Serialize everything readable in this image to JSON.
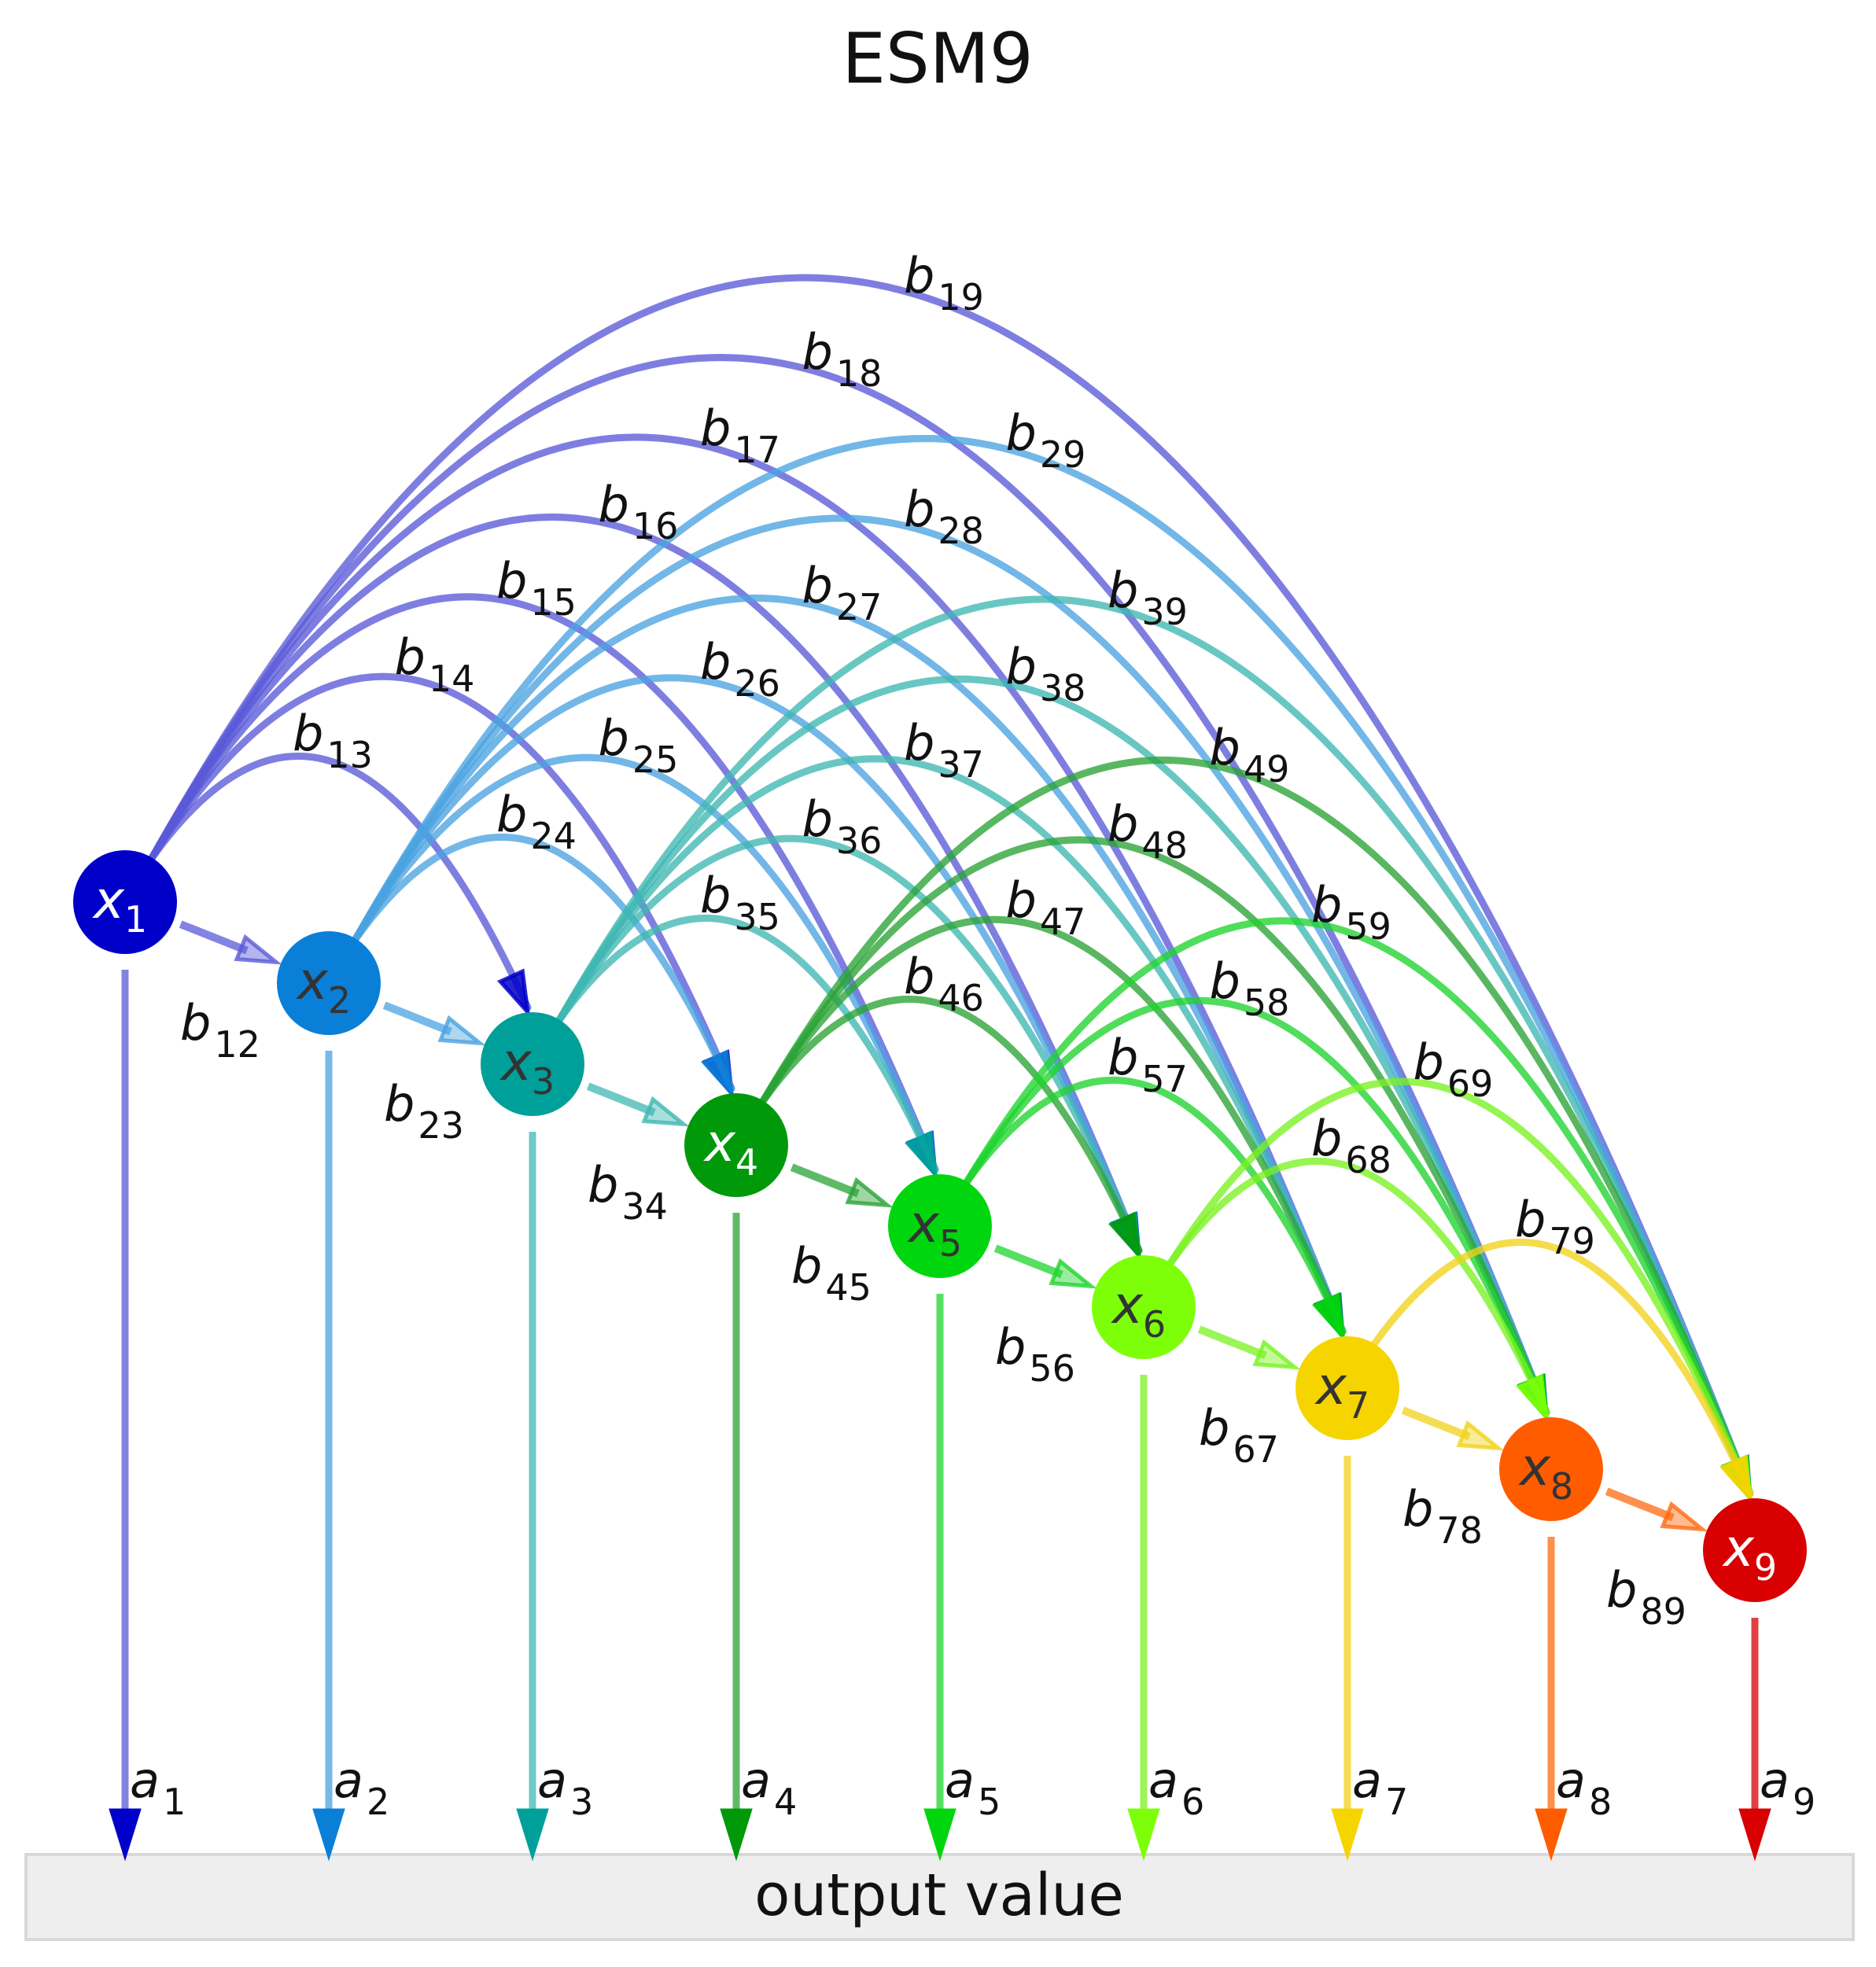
{
  "title": "ESM9",
  "footer": {
    "label": "output value",
    "fill": "#eeeeee",
    "border": "#d8d8d8"
  },
  "nodes": [
    {
      "id": "x1",
      "base": "x",
      "sub": "1",
      "color": "#0000c8",
      "text_color": "#ffffff",
      "edge_color": "#5a5ad8"
    },
    {
      "id": "x2",
      "base": "x",
      "sub": "2",
      "color": "#0a7fd8",
      "text_color": "#333333",
      "edge_color": "#4aa3e0"
    },
    {
      "id": "x3",
      "base": "x",
      "sub": "3",
      "color": "#00a09a",
      "text_color": "#333333",
      "edge_color": "#3fb7b2"
    },
    {
      "id": "x4",
      "base": "x",
      "sub": "4",
      "color": "#00990a",
      "text_color": "#ffffff",
      "edge_color": "#2aa336"
    },
    {
      "id": "x5",
      "base": "x",
      "sub": "5",
      "color": "#00d60e",
      "text_color": "#333333",
      "edge_color": "#1fd42e"
    },
    {
      "id": "x6",
      "base": "x",
      "sub": "6",
      "color": "#7dff0a",
      "text_color": "#333333",
      "edge_color": "#79f220"
    },
    {
      "id": "x7",
      "base": "x",
      "sub": "7",
      "color": "#f5d400",
      "text_color": "#333333",
      "edge_color": "#f1d21a"
    },
    {
      "id": "x8",
      "base": "x",
      "sub": "8",
      "color": "#ff5c00",
      "text_color": "#333333",
      "edge_color": "#ff6a10"
    },
    {
      "id": "x9",
      "base": "x",
      "sub": "9",
      "color": "#d80000",
      "text_color": "#ffffff",
      "edge_color": "#d80000"
    }
  ],
  "output_labels": [
    {
      "base": "a",
      "sub": "1"
    },
    {
      "base": "a",
      "sub": "2"
    },
    {
      "base": "a",
      "sub": "3"
    },
    {
      "base": "a",
      "sub": "4"
    },
    {
      "base": "a",
      "sub": "5"
    },
    {
      "base": "a",
      "sub": "6"
    },
    {
      "base": "a",
      "sub": "7"
    },
    {
      "base": "a",
      "sub": "8"
    },
    {
      "base": "a",
      "sub": "9"
    }
  ],
  "edges": [
    {
      "from": 1,
      "to": 2,
      "base": "b",
      "sub": "12"
    },
    {
      "from": 1,
      "to": 3,
      "base": "b",
      "sub": "13"
    },
    {
      "from": 1,
      "to": 4,
      "base": "b",
      "sub": "14"
    },
    {
      "from": 1,
      "to": 5,
      "base": "b",
      "sub": "15"
    },
    {
      "from": 1,
      "to": 6,
      "base": "b",
      "sub": "16"
    },
    {
      "from": 1,
      "to": 7,
      "base": "b",
      "sub": "17"
    },
    {
      "from": 1,
      "to": 8,
      "base": "b",
      "sub": "18"
    },
    {
      "from": 1,
      "to": 9,
      "base": "b",
      "sub": "19"
    },
    {
      "from": 2,
      "to": 3,
      "base": "b",
      "sub": "23"
    },
    {
      "from": 2,
      "to": 4,
      "base": "b",
      "sub": "24"
    },
    {
      "from": 2,
      "to": 5,
      "base": "b",
      "sub": "25"
    },
    {
      "from": 2,
      "to": 6,
      "base": "b",
      "sub": "26"
    },
    {
      "from": 2,
      "to": 7,
      "base": "b",
      "sub": "27"
    },
    {
      "from": 2,
      "to": 8,
      "base": "b",
      "sub": "28"
    },
    {
      "from": 2,
      "to": 9,
      "base": "b",
      "sub": "29"
    },
    {
      "from": 3,
      "to": 4,
      "base": "b",
      "sub": "34"
    },
    {
      "from": 3,
      "to": 5,
      "base": "b",
      "sub": "35"
    },
    {
      "from": 3,
      "to": 6,
      "base": "b",
      "sub": "36"
    },
    {
      "from": 3,
      "to": 7,
      "base": "b",
      "sub": "37"
    },
    {
      "from": 3,
      "to": 8,
      "base": "b",
      "sub": "38"
    },
    {
      "from": 3,
      "to": 9,
      "base": "b",
      "sub": "39"
    },
    {
      "from": 4,
      "to": 5,
      "base": "b",
      "sub": "45"
    },
    {
      "from": 4,
      "to": 6,
      "base": "b",
      "sub": "46"
    },
    {
      "from": 4,
      "to": 7,
      "base": "b",
      "sub": "47"
    },
    {
      "from": 4,
      "to": 8,
      "base": "b",
      "sub": "48"
    },
    {
      "from": 4,
      "to": 9,
      "base": "b",
      "sub": "49"
    },
    {
      "from": 5,
      "to": 6,
      "base": "b",
      "sub": "56"
    },
    {
      "from": 5,
      "to": 7,
      "base": "b",
      "sub": "57"
    },
    {
      "from": 5,
      "to": 8,
      "base": "b",
      "sub": "58"
    },
    {
      "from": 5,
      "to": 9,
      "base": "b",
      "sub": "59"
    },
    {
      "from": 6,
      "to": 7,
      "base": "b",
      "sub": "67"
    },
    {
      "from": 6,
      "to": 8,
      "base": "b",
      "sub": "68"
    },
    {
      "from": 6,
      "to": 9,
      "base": "b",
      "sub": "69"
    },
    {
      "from": 7,
      "to": 8,
      "base": "b",
      "sub": "78"
    },
    {
      "from": 7,
      "to": 9,
      "base": "b",
      "sub": "79"
    },
    {
      "from": 8,
      "to": 9,
      "base": "b",
      "sub": "89"
    }
  ]
}
